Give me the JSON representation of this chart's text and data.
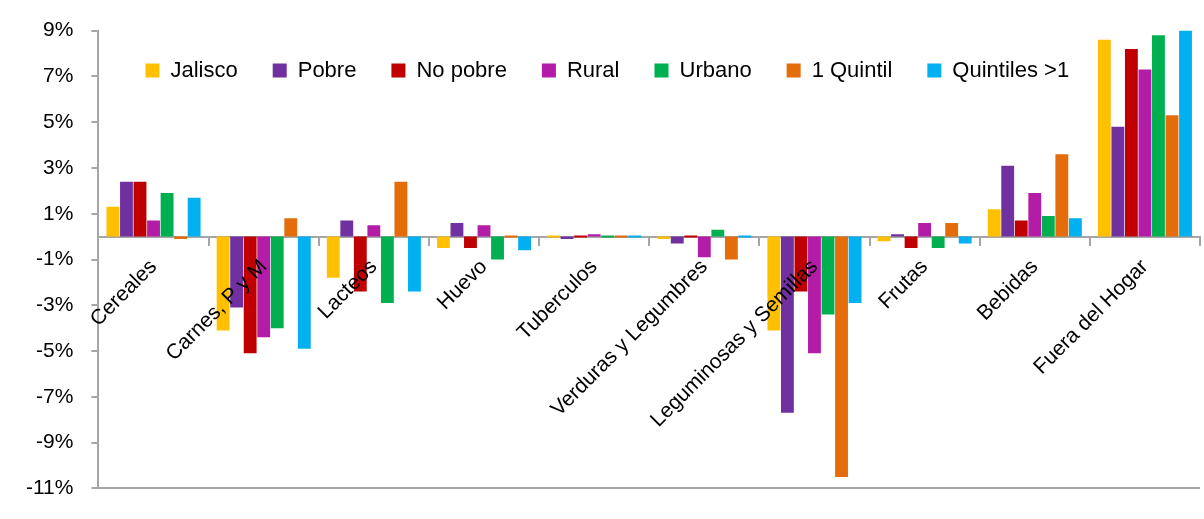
{
  "chart_data": {
    "type": "bar",
    "categories": [
      "Cereales",
      "Carnes, P y M",
      "Lacteos",
      "Huevo",
      "Tuberculos",
      "Verduras y Legumbres",
      "Leguminosas y Semillas",
      "Frutas",
      "Bebidas",
      "Fuera del Hogar"
    ],
    "series": [
      {
        "name": "Jalisco",
        "color": "#ffc000",
        "values": [
          1.3,
          -4.1,
          -1.8,
          -0.5,
          0.0,
          -0.1,
          -4.1,
          -0.2,
          1.2,
          8.6
        ]
      },
      {
        "name": "Pobre",
        "color": "#7030a0",
        "values": [
          2.4,
          -3.1,
          0.7,
          0.6,
          -0.1,
          -0.3,
          -7.7,
          0.1,
          3.1,
          4.8
        ]
      },
      {
        "name": "No pobre",
        "color": "#c00000",
        "values": [
          2.4,
          -5.1,
          -2.4,
          -0.5,
          0.0,
          0.0,
          -2.4,
          -0.5,
          0.7,
          8.2
        ]
      },
      {
        "name": "Rural",
        "color": "#b21ca6",
        "values": [
          0.7,
          -4.4,
          0.5,
          0.5,
          0.1,
          -0.9,
          -5.1,
          0.6,
          1.9,
          7.3
        ]
      },
      {
        "name": "Urbano",
        "color": "#00b050",
        "values": [
          1.9,
          -4.0,
          -2.9,
          -1.0,
          0.0,
          0.3,
          -3.4,
          -0.5,
          0.9,
          8.8
        ]
      },
      {
        "name": "1 Quintil",
        "color": "#e46c0a",
        "values": [
          -0.1,
          0.8,
          2.4,
          0.0,
          0.0,
          -1.0,
          -10.5,
          0.6,
          3.6,
          5.3
        ]
      },
      {
        "name": "Quintiles >1",
        "color": "#00b0f0",
        "values": [
          1.7,
          -4.9,
          -2.4,
          -0.6,
          0.0,
          0.0,
          -2.9,
          -0.3,
          0.8,
          9.0
        ]
      }
    ],
    "ylim": [
      -11,
      9
    ],
    "yticks": [
      {
        "value": -11,
        "label": "-11%"
      },
      {
        "value": -9,
        "label": "-9%"
      },
      {
        "value": -7,
        "label": "-7%"
      },
      {
        "value": -5,
        "label": "-5%"
      },
      {
        "value": -3,
        "label": "-3%"
      },
      {
        "value": -1,
        "label": "-1%"
      },
      {
        "value": 1,
        "label": "1%"
      },
      {
        "value": 3,
        "label": "3%"
      },
      {
        "value": 5,
        "label": "5%"
      },
      {
        "value": 7,
        "label": "7%"
      },
      {
        "value": 9,
        "label": "9%"
      }
    ],
    "legend": "top"
  }
}
